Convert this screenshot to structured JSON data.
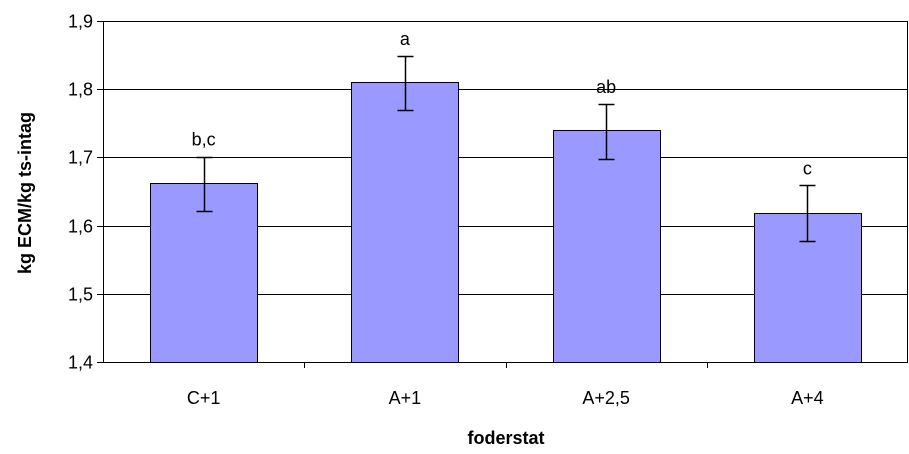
{
  "chart_data": {
    "type": "bar",
    "title": "",
    "xlabel": "foderstat",
    "ylabel": "kg ECM/kg ts-intag",
    "categories": [
      "C+1",
      "A+1",
      "A+2,5",
      "A+4"
    ],
    "values": [
      1.662,
      1.81,
      1.74,
      1.618
    ],
    "error_low": [
      1.621,
      1.77,
      1.698,
      1.578
    ],
    "error_high": [
      1.701,
      1.849,
      1.778,
      1.659
    ],
    "significance_labels": [
      "b,c",
      "a",
      "ab",
      "c"
    ],
    "ylim": [
      1.4,
      1.9
    ],
    "yticks": [
      1.4,
      1.5,
      1.6,
      1.7,
      1.8,
      1.9
    ],
    "ytick_labels": [
      "1,4",
      "1,5",
      "1,6",
      "1,7",
      "1,8",
      "1,9"
    ],
    "grid": true,
    "legend": "none",
    "bar_color": "#9999ff",
    "bar_edge_color": "#000000",
    "grid_color": "#000000"
  }
}
